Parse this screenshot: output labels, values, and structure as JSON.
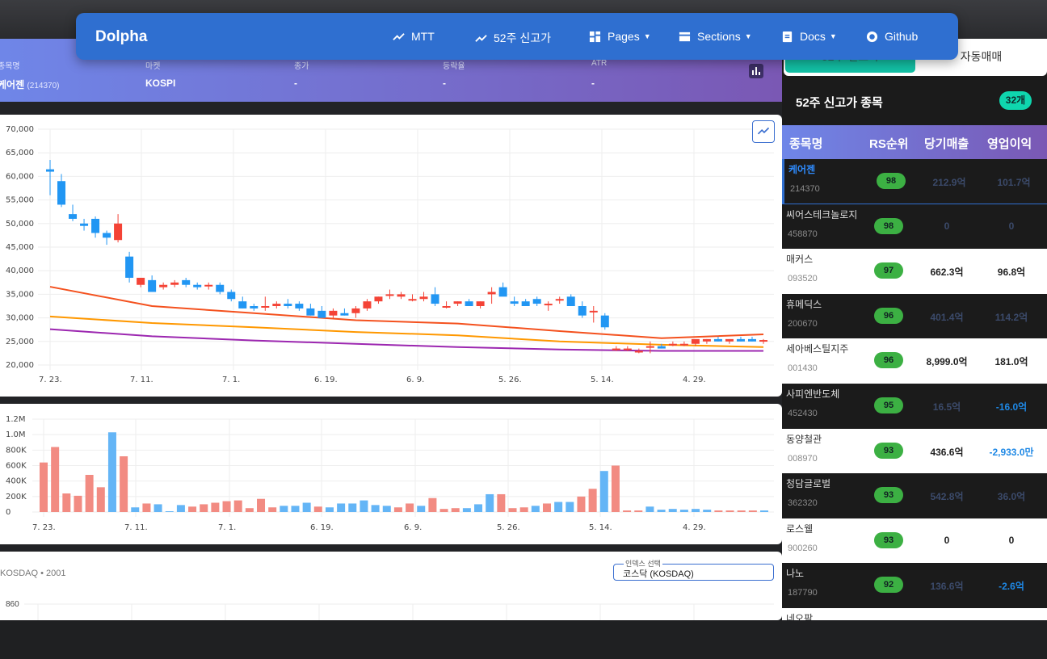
{
  "navbar": {
    "brand": "Dolpha",
    "items": [
      {
        "label": "MTT",
        "icon": "trend-icon"
      },
      {
        "label": "52주 신고가",
        "icon": "trend-icon"
      },
      {
        "label": "Pages",
        "icon": "grid-icon",
        "dropdown": true
      },
      {
        "label": "Sections",
        "icon": "sections-icon",
        "dropdown": true
      },
      {
        "label": "Docs",
        "icon": "doc-icon",
        "dropdown": true
      },
      {
        "label": "Github",
        "icon": "github-icon"
      }
    ]
  },
  "stock_info": {
    "name_label": "종목명",
    "name": "케어젠",
    "code": "(214370)",
    "market_label": "마켓",
    "market": "KOSPI",
    "close_label": "종가",
    "close": "-",
    "change_label": "등락율",
    "change": "-",
    "atr_label": "ATR",
    "atr": "-"
  },
  "side": {
    "tab_active": "52주 신고가",
    "tab_other": "자동매매",
    "title": "52주 신고가 종목",
    "count": "32개",
    "headers": [
      "종목명",
      "RS순위",
      "당기매출",
      "영업이익"
    ],
    "rows": [
      {
        "name": "케어젠",
        "code": "214370",
        "rs": "98",
        "sales": "212.9억",
        "op": "101.7억",
        "theme": "dark",
        "selected": true
      },
      {
        "name": "씨어스테크놀로지",
        "code": "458870",
        "rs": "98",
        "sales": "0",
        "op": "0",
        "theme": "dark"
      },
      {
        "name": "매커스",
        "code": "093520",
        "rs": "97",
        "sales": "662.3억",
        "op": "96.8억",
        "theme": "light"
      },
      {
        "name": "휴메딕스",
        "code": "200670",
        "rs": "96",
        "sales": "401.4억",
        "op": "114.2억",
        "theme": "dark"
      },
      {
        "name": "세아베스틸지주",
        "code": "001430",
        "rs": "96",
        "sales": "8,999.0억",
        "op": "181.0억",
        "theme": "light"
      },
      {
        "name": "사피엔반도체",
        "code": "452430",
        "rs": "95",
        "sales": "16.5억",
        "op": "-16.0억",
        "theme": "dark",
        "neg": true
      },
      {
        "name": "동양철관",
        "code": "008970",
        "rs": "93",
        "sales": "436.6억",
        "op": "-2,933.0만",
        "theme": "light",
        "neg": true
      },
      {
        "name": "청담글로벌",
        "code": "362320",
        "rs": "93",
        "sales": "542.8억",
        "op": "36.0억",
        "theme": "dark"
      },
      {
        "name": "로스웰",
        "code": "900260",
        "rs": "93",
        "sales": "0",
        "op": "0",
        "theme": "light"
      },
      {
        "name": "나노",
        "code": "187790",
        "rs": "92",
        "sales": "136.6억",
        "op": "-2.6억",
        "theme": "dark",
        "neg": true
      },
      {
        "name": "네오팜",
        "code": "",
        "rs": "",
        "sales": "",
        "op": "",
        "theme": "light"
      }
    ]
  },
  "index_panel": {
    "label": "KOSDAQ • 2001",
    "select_label": "인덱스 선택",
    "select_value": "코스닥 (KOSDAQ)",
    "y_tick": "860"
  },
  "chart_data": [
    {
      "type": "candlestick",
      "title": "",
      "y_ticks": [
        "70,000",
        "65,000",
        "60,000",
        "55,000",
        "50,000",
        "45,000",
        "40,000",
        "35,000",
        "30,000",
        "25,000",
        "20,000"
      ],
      "ylim": [
        20000,
        70000
      ],
      "x_ticks": [
        "7. 23.",
        "7. 11.",
        "7. 1.",
        "6. 19.",
        "6. 9.",
        "5. 26.",
        "5. 14.",
        "4. 29."
      ],
      "candles": [
        [
          61500,
          63500,
          56000,
          61000
        ],
        [
          59000,
          60500,
          53500,
          54000
        ],
        [
          52000,
          54000,
          50500,
          51000
        ],
        [
          50000,
          51000,
          48500,
          49500
        ],
        [
          51000,
          51500,
          47000,
          48000
        ],
        [
          48000,
          48500,
          45500,
          47000
        ],
        [
          46500,
          52000,
          46000,
          50000
        ],
        [
          43000,
          44000,
          37500,
          38500
        ],
        [
          37000,
          38500,
          36500,
          38500
        ],
        [
          38000,
          39000,
          35500,
          35500
        ],
        [
          36500,
          37500,
          36000,
          37000
        ],
        [
          37000,
          38000,
          36500,
          37500
        ],
        [
          38000,
          38500,
          36500,
          37000
        ],
        [
          37000,
          37500,
          36000,
          36500
        ],
        [
          37000,
          37500,
          36000,
          37000
        ],
        [
          37000,
          37500,
          35000,
          35500
        ],
        [
          35500,
          36000,
          33500,
          34000
        ],
        [
          33500,
          34500,
          32000,
          32000
        ],
        [
          32500,
          33000,
          31500,
          32000
        ],
        [
          32500,
          34500,
          31500,
          32500
        ],
        [
          32500,
          33500,
          32000,
          33000
        ],
        [
          33000,
          34000,
          32000,
          32500
        ],
        [
          33000,
          33500,
          31500,
          32000
        ],
        [
          32000,
          33000,
          30500,
          30500
        ],
        [
          31500,
          32500,
          30000,
          30000
        ],
        [
          30500,
          32000,
          30000,
          31500
        ],
        [
          31000,
          32000,
          30500,
          30500
        ],
        [
          31000,
          32500,
          30000,
          32000
        ],
        [
          32000,
          34000,
          31500,
          33500
        ],
        [
          33500,
          34500,
          33000,
          34500
        ],
        [
          35000,
          36000,
          34000,
          35000
        ],
        [
          34500,
          35500,
          34000,
          35000
        ],
        [
          34000,
          35000,
          33500,
          34000
        ],
        [
          34000,
          35500,
          33500,
          34500
        ],
        [
          35000,
          36500,
          32500,
          33000
        ],
        [
          32500,
          33500,
          32000,
          32500
        ],
        [
          33000,
          33500,
          32500,
          33500
        ],
        [
          33500,
          34000,
          32500,
          32500
        ],
        [
          32500,
          33500,
          32000,
          33500
        ],
        [
          35000,
          36500,
          33000,
          35500
        ],
        [
          36500,
          37500,
          35000,
          34500
        ],
        [
          33500,
          34500,
          32500,
          33000
        ],
        [
          33500,
          34000,
          32500,
          32500
        ],
        [
          34000,
          34500,
          32500,
          33000
        ],
        [
          33000,
          33500,
          31500,
          33000
        ],
        [
          34000,
          34500,
          33000,
          34000
        ],
        [
          34500,
          35000,
          32500,
          32500
        ],
        [
          32500,
          33500,
          30000,
          30500
        ],
        [
          31500,
          32500,
          29000,
          31500
        ],
        [
          30500,
          31000,
          27500,
          28000
        ],
        [
          23500,
          24000,
          23000,
          23500
        ],
        [
          23500,
          24000,
          23000,
          23500
        ],
        [
          23000,
          23500,
          22500,
          23000
        ],
        [
          24000,
          25000,
          22500,
          24000
        ],
        [
          24000,
          24500,
          23500,
          23500
        ],
        [
          24500,
          25000,
          24000,
          24500
        ],
        [
          24500,
          25000,
          24000,
          24500
        ],
        [
          24500,
          25000,
          24000,
          25500
        ],
        [
          25000,
          25500,
          24500,
          25500
        ],
        [
          25500,
          26000,
          25000,
          25000
        ],
        [
          25000,
          25500,
          24500,
          25500
        ],
        [
          25500,
          26000,
          25000,
          25000
        ],
        [
          25500,
          26000,
          25000,
          25000
        ],
        [
          25000,
          25500,
          24500,
          25300
        ]
      ],
      "ma": [
        {
          "color": "#f4511e",
          "values": [
            36600,
            32500,
            31000,
            29500,
            28800,
            27200,
            25700,
            26500
          ]
        },
        {
          "color": "#ff9800",
          "values": [
            30300,
            28900,
            28000,
            27000,
            26300,
            25000,
            24300,
            23800
          ]
        },
        {
          "color": "#9c27b0",
          "values": [
            27600,
            26100,
            25200,
            24500,
            23800,
            23300,
            23000,
            23000
          ]
        }
      ]
    },
    {
      "type": "bar",
      "title": "",
      "y_ticks": [
        "1.2M",
        "1.0M",
        "800K",
        "600K",
        "400K",
        "200K",
        "0"
      ],
      "ylim": [
        0,
        1200000
      ],
      "x_ticks": [
        "7. 23.",
        "7. 11.",
        "7. 1.",
        "6. 19.",
        "6. 9.",
        "5. 26.",
        "5. 14.",
        "4. 29."
      ],
      "values": [
        640000,
        840000,
        240000,
        210000,
        480000,
        320000,
        1030000,
        720000,
        60000,
        110000,
        100000,
        10000,
        90000,
        70000,
        100000,
        120000,
        140000,
        150000,
        50000,
        170000,
        60000,
        80000,
        80000,
        120000,
        70000,
        60000,
        110000,
        110000,
        150000,
        90000,
        80000,
        60000,
        110000,
        80000,
        180000,
        40000,
        50000,
        50000,
        100000,
        230000,
        230000,
        50000,
        60000,
        80000,
        110000,
        130000,
        130000,
        200000,
        300000,
        530000,
        600000,
        20000,
        20000,
        70000,
        30000,
        40000,
        30000,
        40000,
        30000,
        20000,
        20000,
        20000,
        20000,
        20000
      ],
      "up": [
        false,
        false,
        false,
        false,
        false,
        false,
        true,
        false,
        true,
        false,
        true,
        true,
        true,
        false,
        false,
        false,
        false,
        false,
        false,
        false,
        false,
        true,
        true,
        true,
        false,
        true,
        true,
        true,
        true,
        true,
        true,
        false,
        false,
        true,
        false,
        false,
        false,
        true,
        true,
        true,
        false,
        false,
        false,
        true,
        false,
        true,
        true,
        false,
        false,
        true,
        false,
        false,
        false,
        true,
        true,
        true,
        true,
        true,
        true,
        false,
        false,
        false,
        false,
        true
      ]
    }
  ]
}
